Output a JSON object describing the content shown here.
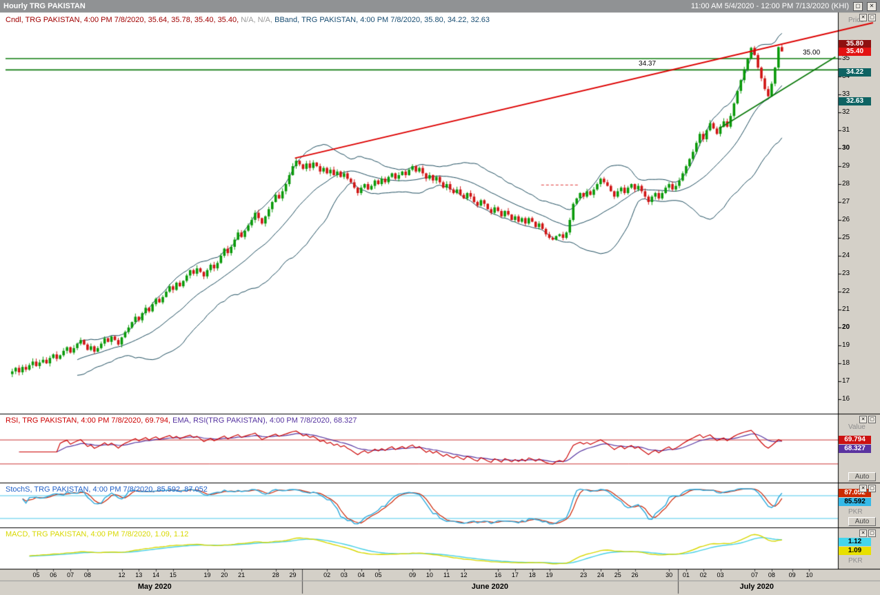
{
  "titlebar": {
    "title": "Hourly TRG PAKISTAN",
    "range": "11:00 AM 5/4/2020 - 12:00 PM 7/13/2020 (KHI)",
    "maximize_icon": "▢",
    "close_icon": "✕"
  },
  "panel_icons": {
    "close": "✕",
    "maximize": "▢"
  },
  "price_panel": {
    "legend": {
      "cndl": "Cndl, TRG PAKISTAN, 4:00 PM 7/8/2020, 35.64, 35.78, 35.40, 35.40,",
      "na": " N/A, N/A,",
      "bband": " BBand, TRG PAKISTAN, 4:00 PM 7/8/2020, 35.80, 34.22, 32.63"
    },
    "axis_title": "Price",
    "badges": [
      {
        "text": "35.80",
        "bg": "#8f1010",
        "fg": "#ffffff"
      },
      {
        "text": "35.40",
        "bg": "#e31212",
        "fg": "#ffffff"
      },
      {
        "text": "34.22",
        "bg": "#0e6363",
        "fg": "#ffffff"
      },
      {
        "text": "32.63",
        "bg": "#0e6363",
        "fg": "#ffffff"
      }
    ]
  },
  "rsi_panel": {
    "legend_rsi": "RSI, TRG PAKISTAN, 4:00 PM 7/8/2020, 69.794,",
    "legend_ema": " EMA, RSI(TRG PAKISTAN), 4:00 PM 7/8/2020, 68.327",
    "axis_title": "Value",
    "auto": "Auto",
    "badges": [
      {
        "text": "69.794",
        "bg": "#cc1111",
        "fg": "#ffffff"
      },
      {
        "text": "68.327",
        "bg": "#5a33a0",
        "fg": "#ffffff"
      }
    ]
  },
  "stoch_panel": {
    "legend": "StochS, TRG PAKISTAN, 4:00 PM 7/8/2020, 85.592, 87.052",
    "axis_title": "PKR",
    "auto": "Auto",
    "badges": [
      {
        "text": "87.052",
        "bg": "#cc2a00",
        "fg": "#ffffff"
      },
      {
        "text": "85.592",
        "bg": "#35b9e8",
        "fg": "#000000"
      }
    ]
  },
  "macd_panel": {
    "legend": "MACD, TRG PAKISTAN, 4:00 PM 7/8/2020, 1.09, 1.12",
    "axis_title": "PKR",
    "badges": [
      {
        "text": "1.12",
        "bg": "#45d5ec",
        "fg": "#000000"
      },
      {
        "text": "1.09",
        "bg": "#e8e000",
        "fg": "#000000"
      }
    ]
  },
  "chart_data": {
    "type": "candlestick",
    "symbol": "TRG PAKISTAN",
    "timeframe": "Hourly",
    "visible_range": "11:00 AM 5/4/2020 - 12:00 PM 7/13/2020 (KHI)",
    "first_open": 17.4,
    "last_bar": {
      "open": 35.64,
      "high": 35.78,
      "low": 35.4,
      "close": 35.4
    },
    "closes": [
      17.55,
      17.75,
      17.5,
      17.8,
      17.65,
      17.9,
      18.1,
      17.85,
      18.05,
      18.2,
      18.0,
      18.3,
      18.5,
      18.25,
      18.45,
      18.7,
      18.9,
      18.6,
      18.85,
      19.1,
      19.3,
      19.05,
      18.75,
      18.95,
      18.65,
      18.85,
      19.1,
      19.4,
      19.2,
      19.5,
      19.3,
      19.05,
      19.45,
      19.75,
      20.0,
      20.3,
      20.6,
      20.4,
      20.8,
      21.1,
      20.9,
      21.3,
      21.6,
      21.4,
      21.7,
      22.0,
      22.3,
      22.1,
      22.5,
      22.3,
      22.6,
      22.9,
      23.2,
      23.0,
      23.3,
      23.1,
      22.85,
      23.2,
      23.5,
      23.3,
      23.6,
      24.0,
      24.4,
      24.15,
      24.5,
      24.9,
      25.3,
      25.05,
      25.4,
      25.7,
      26.0,
      26.4,
      26.1,
      25.8,
      26.2,
      26.6,
      27.0,
      27.4,
      27.2,
      27.6,
      28.0,
      28.5,
      29.0,
      29.3,
      29.1,
      28.85,
      29.15,
      28.9,
      29.2,
      29.0,
      28.7,
      28.9,
      28.6,
      28.8,
      28.5,
      28.7,
      28.4,
      28.6,
      28.3,
      28.1,
      27.8,
      27.5,
      27.8,
      28.0,
      27.7,
      27.9,
      28.2,
      28.0,
      28.3,
      28.1,
      28.4,
      28.6,
      28.3,
      28.5,
      28.7,
      28.5,
      28.8,
      29.0,
      28.7,
      28.9,
      28.6,
      28.3,
      28.5,
      28.2,
      28.4,
      28.1,
      27.8,
      28.0,
      27.7,
      27.5,
      27.7,
      27.4,
      27.2,
      27.5,
      27.3,
      27.0,
      26.8,
      27.1,
      26.9,
      26.6,
      26.4,
      26.7,
      26.5,
      26.2,
      26.5,
      26.3,
      26.0,
      26.2,
      25.9,
      26.1,
      25.8,
      26.1,
      25.9,
      25.6,
      25.8,
      25.5,
      25.2,
      25.0,
      24.9,
      25.1,
      25.2,
      25.0,
      25.3,
      26.0,
      26.9,
      27.2,
      27.5,
      27.3,
      27.6,
      27.4,
      27.7,
      28.0,
      28.3,
      28.1,
      27.9,
      27.6,
      27.3,
      27.6,
      27.8,
      27.5,
      27.8,
      28.0,
      27.7,
      27.9,
      27.6,
      27.3,
      27.0,
      27.3,
      27.5,
      27.2,
      27.5,
      27.8,
      28.0,
      27.7,
      27.9,
      28.2,
      28.6,
      29.0,
      29.4,
      29.8,
      30.3,
      30.8,
      30.5,
      31.0,
      31.4,
      31.1,
      30.8,
      31.2,
      31.5,
      31.2,
      31.8,
      32.5,
      33.2,
      33.8,
      34.4,
      35.0,
      35.6,
      35.2,
      34.5,
      33.9,
      33.3,
      32.9,
      33.6,
      34.5,
      35.64,
      35.4
    ],
    "bars_per_day": 5,
    "price_axis": {
      "ticks": [
        35,
        34,
        33,
        32,
        31,
        30,
        29,
        28,
        27,
        26,
        25,
        24,
        23,
        22,
        21,
        20,
        19,
        18,
        17,
        16
      ],
      "bold_ticks": [
        30,
        20
      ]
    },
    "x_axis": {
      "day_labels": [
        [
          "05",
          7
        ],
        [
          "06",
          12
        ],
        [
          "07",
          17
        ],
        [
          "08",
          22
        ],
        [
          "12",
          32
        ],
        [
          "13",
          37
        ],
        [
          "14",
          42
        ],
        [
          "15",
          47
        ],
        [
          "19",
          57
        ],
        [
          "20",
          62
        ],
        [
          "21",
          67
        ],
        [
          "28",
          77
        ],
        [
          "29",
          82
        ],
        [
          "02",
          92
        ],
        [
          "03",
          97
        ],
        [
          "04",
          102
        ],
        [
          "05",
          107
        ],
        [
          "09",
          117
        ],
        [
          "10",
          122
        ],
        [
          "11",
          127
        ],
        [
          "12",
          132
        ],
        [
          "16",
          142
        ],
        [
          "17",
          147
        ],
        [
          "18",
          152
        ],
        [
          "19",
          157
        ],
        [
          "23",
          167
        ],
        [
          "24",
          172
        ],
        [
          "25",
          177
        ],
        [
          "26",
          182
        ],
        [
          "30",
          192
        ],
        [
          "01",
          197
        ],
        [
          "02",
          202
        ],
        [
          "03",
          207
        ],
        [
          "07",
          217
        ],
        [
          "08",
          222
        ],
        [
          "09",
          228
        ],
        [
          "10",
          233
        ]
      ],
      "month_labels": [
        [
          "May 2020",
          42
        ],
        [
          "June 2020",
          140
        ],
        [
          "July 2020",
          218
        ]
      ],
      "month_separator_bars": [
        85,
        195
      ]
    },
    "overlays": {
      "bollinger": {
        "period": 20,
        "stdev_mult": 1.9,
        "last_upper": 35.8,
        "last_middle": 34.22,
        "last_lower": 32.63
      },
      "horizontal_lines": [
        {
          "price": 35.0,
          "label": "35.00",
          "label_bar": 234
        },
        {
          "price": 34.37,
          "label": "34.37",
          "label_bar": 186
        }
      ],
      "trendlines": [
        {
          "name": "red-uptrend",
          "from_bar": 83,
          "from_price": 29.45,
          "to_bar": 252,
          "to_price": 37.0,
          "color": "#dd0000"
        },
        {
          "name": "green-support",
          "from_bar": 207,
          "from_price": 31.1,
          "to_bar": 241,
          "to_price": 35.1,
          "color": "#0b7a0b"
        }
      ],
      "dashed_segment": {
        "price": 27.95,
        "from_bar": 155,
        "to_bar": 166,
        "color": "#e03030"
      }
    },
    "indicators": {
      "rsi": {
        "period": 14,
        "value": 69.794,
        "ema_period": 9,
        "ema_value": 68.327,
        "levels": [
          70,
          30
        ]
      },
      "stochastic": {
        "k_period": 14,
        "slowing": 3,
        "d_period": 3,
        "k_value": 85.592,
        "d_value": 87.052,
        "levels": [
          80,
          20
        ]
      },
      "macd": {
        "fast": 12,
        "slow": 26,
        "signal": 9,
        "macd_value": 1.09,
        "signal_value": 1.12
      }
    },
    "colors": {
      "candle_up": "#0a9a0a",
      "candle_down": "#d01414",
      "bband": "#1c4c5e",
      "support_green": "#0b7a0b",
      "trend_red": "#dd0000",
      "rsi": "#cc0000",
      "rsi_ema": "#5533a0",
      "r si_level_unused": "",
      "rsi_level": "#cc3333",
      "stoch_k": "#29a8dc",
      "stoch_d": "#cc2200",
      "stoch_level": "#4ac8ec",
      "macd": "#d8d800",
      "macd_signal": "#45d0e6"
    }
  }
}
